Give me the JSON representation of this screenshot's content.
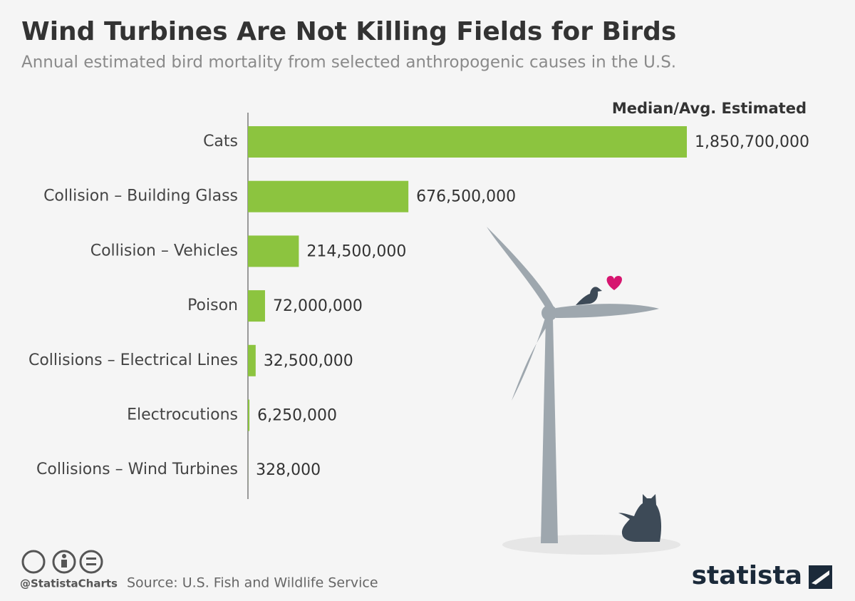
{
  "chart_data": {
    "type": "hbar",
    "title": "Wind Turbines Are Not Killing Fields for Birds",
    "subtitle": "Annual estimated bird mortality from selected anthropogenic causes in the U.S.",
    "value_header": "Median/Avg. Estimated",
    "categories": [
      "Cats",
      "Collision – Building Glass",
      "Collision – Vehicles",
      "Poison",
      "Collisions – Electrical Lines",
      "Electrocutions",
      "Collisions – Wind Turbines"
    ],
    "values": [
      1850700000,
      676500000,
      214500000,
      72000000,
      32500000,
      6250000,
      328000
    ],
    "value_labels": [
      "1,850,700,000",
      "676,500,000",
      "214,500,000",
      "72,000,000",
      "32,500,000",
      "6,250,000",
      "328,000"
    ],
    "color": "#8cc43f",
    "xlim": [
      0,
      1850700000
    ],
    "credit": "@StatistaCharts",
    "source": "Source: U.S. Fish and Wildlife Service",
    "logo": "statista"
  }
}
